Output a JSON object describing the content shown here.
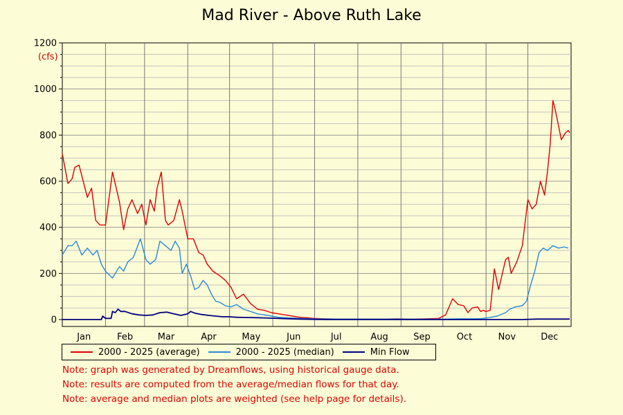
{
  "chart_data": {
    "type": "line",
    "title": "Mad River - Above Ruth Lake",
    "ylabel": "(cfs)",
    "ylim": [
      0,
      1200
    ],
    "yticks": [
      0,
      200,
      400,
      600,
      800,
      1000,
      1200
    ],
    "xlim": [
      0,
      365
    ],
    "month_labels": [
      "Jan",
      "Feb",
      "Mar",
      "Apr",
      "May",
      "Jun",
      "Jul",
      "Aug",
      "Sep",
      "Oct",
      "Nov",
      "Dec"
    ],
    "grid": true,
    "legend_position": "bottom",
    "colors": {
      "average": "#dd0000",
      "median": "#2a88d8",
      "min": "#000080"
    },
    "series": [
      {
        "name": "2000 - 2025 (average)",
        "x": [
          0,
          4,
          7,
          9,
          12,
          15,
          18,
          21,
          24,
          27,
          31,
          36,
          41,
          44,
          47,
          50,
          54,
          57,
          60,
          63,
          66,
          68,
          71,
          74,
          76,
          80,
          84,
          86,
          90,
          94,
          98,
          101,
          104,
          108,
          113,
          117,
          121,
          125,
          130,
          135,
          140,
          145,
          150,
          155,
          160,
          165,
          170,
          175,
          180,
          190,
          200,
          210,
          220,
          230,
          240,
          250,
          260,
          270,
          275,
          280,
          284,
          288,
          291,
          294,
          298,
          300,
          302,
          304,
          307,
          310,
          313,
          318,
          320,
          322,
          326,
          330,
          334,
          337,
          340,
          343,
          346,
          348,
          350,
          352,
          354,
          356,
          358,
          361,
          363,
          364
        ],
        "y": [
          720,
          590,
          610,
          660,
          670,
          600,
          530,
          570,
          430,
          410,
          410,
          640,
          510,
          390,
          480,
          520,
          460,
          500,
          410,
          520,
          470,
          570,
          640,
          430,
          410,
          430,
          520,
          470,
          350,
          350,
          290,
          280,
          240,
          210,
          190,
          170,
          140,
          90,
          110,
          70,
          45,
          40,
          30,
          25,
          20,
          15,
          10,
          8,
          5,
          3,
          2,
          2,
          2,
          2,
          3,
          2,
          3,
          5,
          20,
          90,
          65,
          60,
          30,
          50,
          55,
          35,
          40,
          35,
          40,
          220,
          130,
          260,
          270,
          200,
          250,
          320,
          520,
          480,
          500,
          600,
          540,
          640,
          760,
          950,
          900,
          840,
          780,
          810,
          820,
          810
        ],
        "y_display_note": ""
      },
      {
        "name": "2000 - 2025 (median)",
        "x": [
          0,
          4,
          7,
          10,
          14,
          18,
          22,
          25,
          28,
          31,
          36,
          41,
          44,
          47,
          51,
          56,
          60,
          63,
          67,
          70,
          74,
          78,
          81,
          84,
          86,
          89,
          92,
          95,
          98,
          101,
          104,
          107,
          110,
          113,
          117,
          121,
          125,
          130,
          135,
          140,
          145,
          150,
          155,
          160,
          170,
          180,
          200,
          220,
          240,
          260,
          275,
          285,
          295,
          300,
          306,
          312,
          318,
          321,
          325,
          330,
          333,
          336,
          339,
          342,
          345,
          348,
          352,
          356,
          360,
          363
        ],
        "y": [
          280,
          320,
          320,
          340,
          280,
          310,
          280,
          300,
          240,
          210,
          180,
          230,
          210,
          250,
          270,
          350,
          260,
          240,
          260,
          340,
          320,
          300,
          340,
          310,
          200,
          240,
          190,
          130,
          140,
          170,
          150,
          110,
          80,
          75,
          60,
          55,
          65,
          45,
          35,
          25,
          20,
          15,
          10,
          8,
          5,
          3,
          2,
          2,
          2,
          2,
          2,
          3,
          3,
          4,
          8,
          15,
          30,
          45,
          55,
          60,
          80,
          150,
          210,
          290,
          310,
          300,
          320,
          310,
          315,
          310
        ],
        "y_display_note": ""
      },
      {
        "name": "Min Flow",
        "x": [
          0,
          10,
          20,
          28,
          29,
          31,
          33,
          35,
          36,
          38,
          40,
          42,
          45,
          50,
          55,
          60,
          65,
          70,
          75,
          80,
          85,
          90,
          92,
          95,
          100,
          105,
          110,
          115,
          120,
          125,
          130,
          140,
          150,
          160,
          170,
          180,
          190,
          200,
          250,
          300,
          330,
          340,
          350,
          360,
          364
        ],
        "y": [
          0,
          0,
          0,
          0,
          15,
          5,
          5,
          5,
          35,
          30,
          45,
          35,
          35,
          25,
          20,
          18,
          20,
          30,
          32,
          25,
          18,
          25,
          35,
          28,
          22,
          18,
          15,
          12,
          12,
          10,
          9,
          8,
          6,
          4,
          2,
          1,
          0,
          0,
          0,
          0,
          0,
          2,
          2,
          2,
          2
        ],
        "y_display_note": ""
      }
    ]
  },
  "legend": {
    "items": [
      {
        "label": "2000 - 2025 (average)"
      },
      {
        "label": "2000 - 2025 (median)"
      },
      {
        "label": "Min Flow"
      }
    ]
  },
  "notes": [
    "Note: graph was generated by Dreamflows, using historical gauge data.",
    "Note: results are computed from the average/median flows for that day.",
    "Note: average and median plots are weighted (see help page for details)."
  ]
}
